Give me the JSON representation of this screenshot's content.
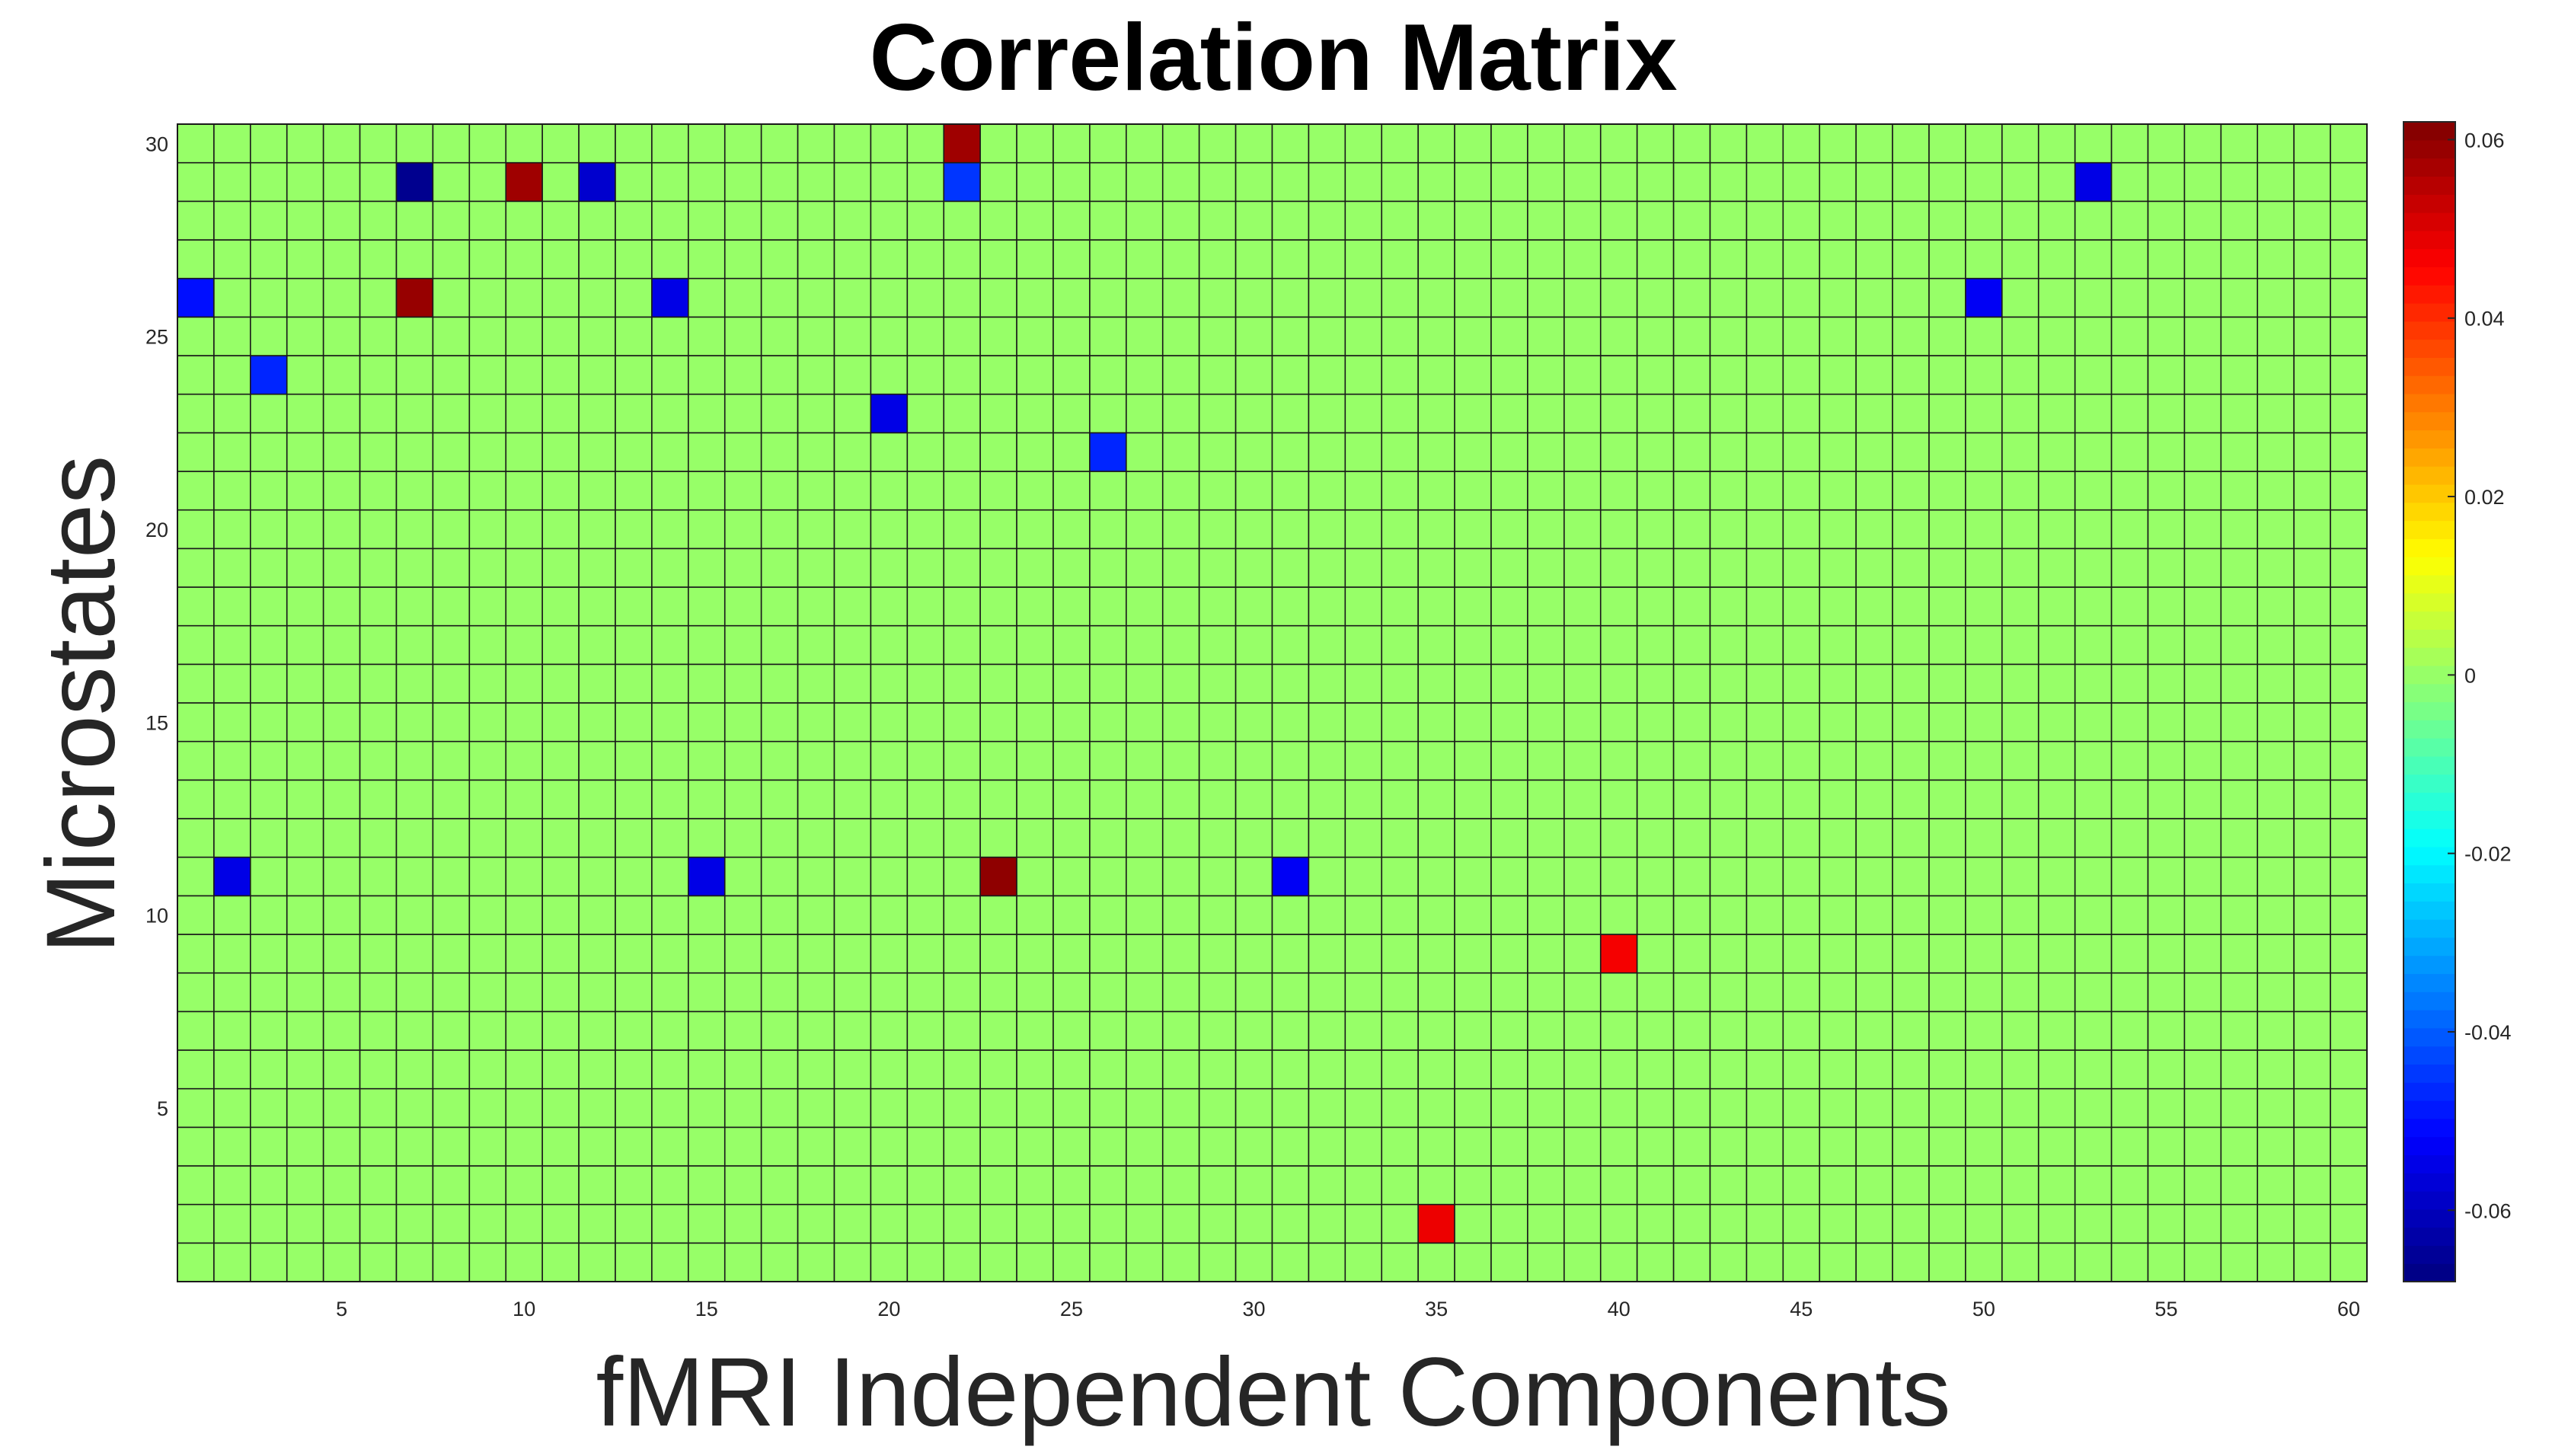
{
  "chart_data": {
    "type": "heatmap",
    "title": "Correlation Matrix",
    "xlabel": "fMRI Independent Components",
    "ylabel": "Microstates",
    "x_range": [
      1,
      60
    ],
    "y_range": [
      1,
      30
    ],
    "x_ticks": [
      5,
      10,
      15,
      20,
      25,
      30,
      35,
      40,
      45,
      50,
      55,
      60
    ],
    "y_ticks": [
      5,
      10,
      15,
      20,
      25,
      30
    ],
    "background_value": 0,
    "colormap": "jet",
    "clim": [
      -0.068,
      0.062
    ],
    "colorbar_ticks": [
      0.06,
      0.04,
      0.02,
      0,
      -0.02,
      -0.04,
      -0.06
    ],
    "colorbar_tick_labels": [
      "0.06",
      "0.04",
      "0.02",
      "0",
      "-0.02",
      "-0.04",
      "-0.06"
    ],
    "grid": true,
    "cells": [
      {
        "x": 22,
        "y": 30,
        "value": 0.058
      },
      {
        "x": 7,
        "y": 29,
        "value": -0.066
      },
      {
        "x": 10,
        "y": 29,
        "value": 0.058
      },
      {
        "x": 12,
        "y": 29,
        "value": -0.058
      },
      {
        "x": 22,
        "y": 29,
        "value": -0.045
      },
      {
        "x": 53,
        "y": 29,
        "value": -0.055
      },
      {
        "x": 1,
        "y": 26,
        "value": -0.05
      },
      {
        "x": 7,
        "y": 26,
        "value": 0.059
      },
      {
        "x": 14,
        "y": 26,
        "value": -0.055
      },
      {
        "x": 50,
        "y": 26,
        "value": -0.053
      },
      {
        "x": 3,
        "y": 24,
        "value": -0.047
      },
      {
        "x": 20,
        "y": 23,
        "value": -0.055
      },
      {
        "x": 26,
        "y": 22,
        "value": -0.047
      },
      {
        "x": 2,
        "y": 11,
        "value": -0.055
      },
      {
        "x": 15,
        "y": 11,
        "value": -0.055
      },
      {
        "x": 23,
        "y": 11,
        "value": 0.06
      },
      {
        "x": 31,
        "y": 11,
        "value": -0.053
      },
      {
        "x": 40,
        "y": 9,
        "value": 0.047
      },
      {
        "x": 35,
        "y": 2,
        "value": 0.048
      }
    ]
  }
}
